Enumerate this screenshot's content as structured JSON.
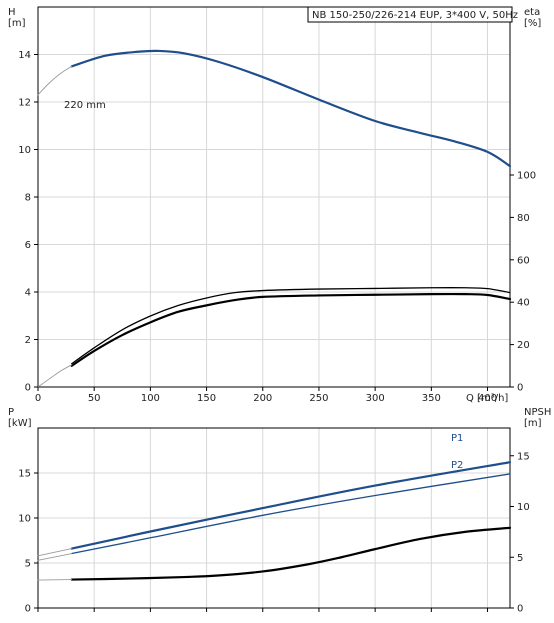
{
  "chart_data": [
    {
      "type": "line",
      "title": "NB 150-250/226-214 EUP, 3*400 V, 50Hz",
      "xlabel": "Q [m³/h]",
      "ylabel": "H",
      "ylabel_unit": "[m]",
      "y2label": "eta",
      "y2label_unit": "[%]",
      "xlim": [
        0,
        420
      ],
      "ylim": [
        0,
        16
      ],
      "y2lim": [
        0,
        100
      ],
      "xticks": [
        "0",
        "50",
        "100",
        "150",
        "200",
        "250",
        "300",
        "350",
        "400"
      ],
      "yticks": [
        "0",
        "2",
        "4",
        "6",
        "8",
        "10",
        "12",
        "14"
      ],
      "y2ticks": [
        "0",
        "20",
        "40",
        "60",
        "80",
        "100"
      ],
      "annotation": "220 mm",
      "grid": true,
      "series": [
        {
          "key": "head",
          "axis": "left",
          "color": "#1f4e8c",
          "x": [
            30,
            60,
            90,
            108,
            130,
            160,
            200,
            250,
            300,
            340,
            370,
            400,
            420
          ],
          "values": [
            13.5,
            13.95,
            14.12,
            14.15,
            14.05,
            13.7,
            13.05,
            12.1,
            11.2,
            10.7,
            10.35,
            9.9,
            9.3
          ]
        },
        {
          "key": "head-extrapolated",
          "axis": "left",
          "color": "#9a9a9a",
          "x": [
            0,
            10,
            20,
            30
          ],
          "values": [
            12.3,
            12.8,
            13.2,
            13.5
          ]
        },
        {
          "key": "eta-upper",
          "axis": "right",
          "color": "#000000",
          "x": [
            30,
            50,
            75,
            100,
            125,
            150,
            175,
            200,
            250,
            300,
            350,
            380,
            400,
            420
          ],
          "values": [
            11,
            18.5,
            27,
            33.5,
            38.5,
            42,
            44.5,
            45.5,
            46.2,
            46.5,
            46.8,
            46.8,
            46.4,
            44.5
          ]
        },
        {
          "key": "eta-lower",
          "axis": "right",
          "color": "#000000",
          "x": [
            30,
            50,
            75,
            100,
            125,
            150,
            175,
            200,
            250,
            300,
            350,
            380,
            400,
            420
          ],
          "values": [
            10,
            17,
            24.5,
            30.5,
            35.5,
            38.5,
            41,
            42.5,
            43.2,
            43.5,
            43.8,
            43.8,
            43.4,
            41.5
          ]
        },
        {
          "key": "eta-extrapolated",
          "axis": "right",
          "color": "#9a9a9a",
          "x": [
            0,
            10,
            20,
            30
          ],
          "values": [
            0,
            3.8,
            7.5,
            10.5
          ]
        }
      ]
    },
    {
      "type": "line",
      "xlabel": "",
      "ylabel": "P",
      "ylabel_unit": "[kW]",
      "y2label": "NPSH",
      "y2label_unit": "[m]",
      "xlim": [
        0,
        420
      ],
      "ylim": [
        0,
        20
      ],
      "y2lim": [
        0,
        20
      ],
      "yticks": [
        "0",
        "5",
        "10",
        "15"
      ],
      "y2ticks": [
        "0",
        "5",
        "10",
        "15"
      ],
      "grid": true,
      "series": [
        {
          "key": "p1",
          "name": "P1",
          "axis": "left",
          "color": "#1f4e8c",
          "x": [
            30,
            100,
            200,
            300,
            420
          ],
          "values": [
            6.6,
            8.5,
            11.1,
            13.6,
            16.2
          ]
        },
        {
          "key": "p2",
          "name": "P2",
          "axis": "left",
          "color": "#1f4e8c",
          "x": [
            30,
            100,
            200,
            300,
            420
          ],
          "values": [
            6.05,
            7.8,
            10.3,
            12.5,
            14.9
          ]
        },
        {
          "key": "p1-extrapolated",
          "axis": "left",
          "color": "#9a9a9a",
          "x": [
            0,
            30
          ],
          "values": [
            5.8,
            6.6
          ]
        },
        {
          "key": "p2-extrapolated",
          "axis": "left",
          "color": "#9a9a9a",
          "x": [
            0,
            30
          ],
          "values": [
            5.3,
            6.05
          ]
        },
        {
          "key": "npsh",
          "axis": "right",
          "color": "#000000",
          "x": [
            30,
            80,
            130,
            160,
            200,
            240,
            270,
            300,
            340,
            380,
            420
          ],
          "values": [
            2.8,
            2.9,
            3.05,
            3.2,
            3.6,
            4.3,
            5.0,
            5.8,
            6.8,
            7.5,
            7.9
          ]
        },
        {
          "key": "npsh-extrapolated",
          "axis": "right",
          "color": "#9a9a9a",
          "x": [
            0,
            30
          ],
          "values": [
            2.75,
            2.8
          ]
        }
      ]
    }
  ]
}
